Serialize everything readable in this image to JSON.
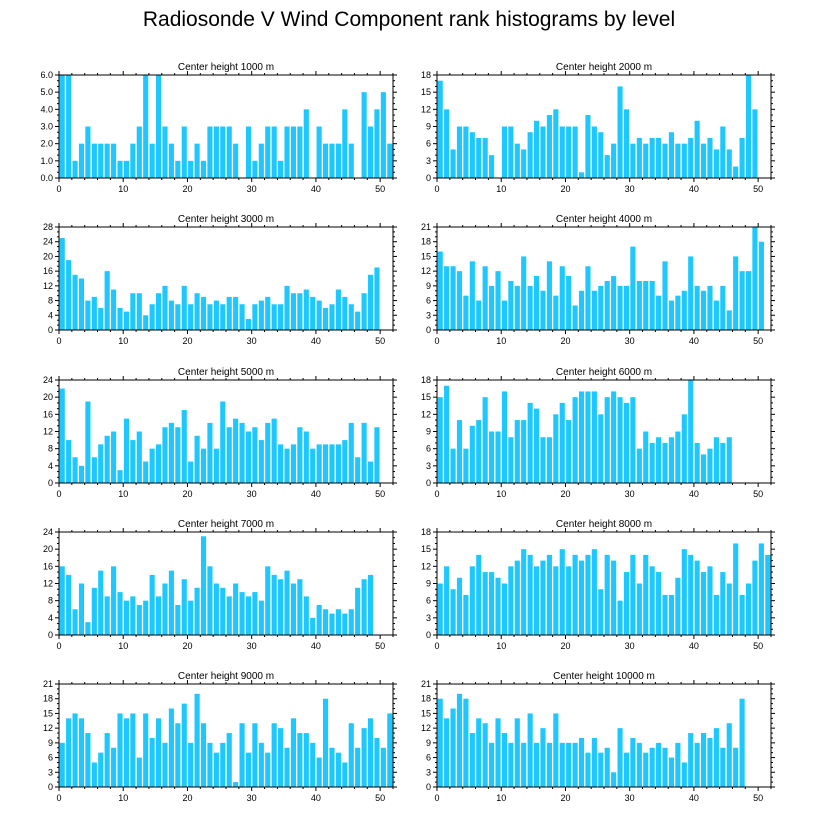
{
  "title": "Radiosonde V Wind Component rank histograms by level",
  "colors": {
    "bar": "#1ec8ff",
    "axis": "#000000",
    "background": "#ffffff"
  },
  "chart_data": [
    {
      "type": "bar",
      "title": "Center height 1000 m",
      "xlabel": "",
      "ylabel": "",
      "xlim": [
        0,
        52
      ],
      "ylim": [
        0,
        6
      ],
      "yticks": [
        0,
        1,
        2,
        3,
        4,
        5,
        6
      ],
      "ytick_labels": [
        "0.0",
        "1.0",
        "2.0",
        "3.0",
        "4.0",
        "5.0",
        "6.0"
      ],
      "xticks": [
        0,
        10,
        20,
        30,
        40,
        50
      ],
      "xtick_labels": [
        "0",
        "10",
        "20",
        "30",
        "40",
        "50"
      ],
      "categories": [
        0,
        1,
        2,
        3,
        4,
        5,
        6,
        7,
        8,
        9,
        10,
        11,
        12,
        13,
        14,
        15,
        16,
        17,
        18,
        19,
        20,
        21,
        22,
        23,
        24,
        25,
        26,
        27,
        28,
        29,
        30,
        31,
        32,
        33,
        34,
        35,
        36,
        37,
        38,
        39,
        40,
        41,
        42,
        43,
        44,
        45,
        46,
        47,
        48,
        49,
        50,
        51
      ],
      "values": [
        6,
        6,
        1,
        2,
        3,
        2,
        2,
        2,
        2,
        1,
        1,
        2,
        3,
        6,
        2,
        6,
        3,
        2,
        1,
        3,
        1,
        2,
        1,
        3,
        3,
        3,
        3,
        2,
        0,
        3,
        1,
        2,
        3,
        3,
        1,
        3,
        3,
        3,
        4,
        0,
        3,
        2,
        2,
        2,
        4,
        2,
        0,
        5,
        3,
        4,
        5,
        2
      ]
    },
    {
      "type": "bar",
      "title": "Center height 2000 m",
      "xlabel": "",
      "ylabel": "",
      "xlim": [
        0,
        52
      ],
      "ylim": [
        0,
        18
      ],
      "yticks": [
        0,
        3,
        6,
        9,
        12,
        15,
        18
      ],
      "ytick_labels": [
        "0",
        "3",
        "6",
        "9",
        "12",
        "15",
        "18"
      ],
      "xticks": [
        0,
        10,
        20,
        30,
        40,
        50
      ],
      "xtick_labels": [
        "0",
        "10",
        "20",
        "30",
        "40",
        "50"
      ],
      "categories": [
        0,
        1,
        2,
        3,
        4,
        5,
        6,
        7,
        8,
        9,
        10,
        11,
        12,
        13,
        14,
        15,
        16,
        17,
        18,
        19,
        20,
        21,
        22,
        23,
        24,
        25,
        26,
        27,
        28,
        29,
        30,
        31,
        32,
        33,
        34,
        35,
        36,
        37,
        38,
        39,
        40,
        41,
        42,
        43,
        44,
        45,
        46,
        47,
        48,
        49,
        50,
        51
      ],
      "values": [
        17,
        12,
        5,
        9,
        9,
        8,
        7,
        7,
        4,
        0,
        9,
        9,
        6,
        5,
        8,
        10,
        9,
        11,
        12,
        9,
        9,
        9,
        1,
        11,
        9,
        8,
        4,
        6,
        16,
        12,
        6,
        7,
        6,
        7,
        7,
        6,
        8,
        6,
        6,
        7,
        10,
        6,
        7,
        5,
        9,
        5,
        2,
        7,
        18,
        12,
        0,
        0
      ]
    },
    {
      "type": "bar",
      "title": "Center height 3000 m",
      "xlabel": "",
      "ylabel": "",
      "xlim": [
        0,
        52
      ],
      "ylim": [
        0,
        28
      ],
      "yticks": [
        0,
        4,
        8,
        12,
        16,
        20,
        24,
        28
      ],
      "ytick_labels": [
        "0",
        "4",
        "8",
        "12",
        "16",
        "20",
        "24",
        "28"
      ],
      "xticks": [
        0,
        10,
        20,
        30,
        40,
        50
      ],
      "xtick_labels": [
        "0",
        "10",
        "20",
        "30",
        "40",
        "50"
      ],
      "categories": [
        0,
        1,
        2,
        3,
        4,
        5,
        6,
        7,
        8,
        9,
        10,
        11,
        12,
        13,
        14,
        15,
        16,
        17,
        18,
        19,
        20,
        21,
        22,
        23,
        24,
        25,
        26,
        27,
        28,
        29,
        30,
        31,
        32,
        33,
        34,
        35,
        36,
        37,
        38,
        39,
        40,
        41,
        42,
        43,
        44,
        45,
        46,
        47,
        48,
        49,
        50,
        51
      ],
      "values": [
        25,
        19,
        15,
        14,
        8,
        9,
        6,
        16,
        11,
        6,
        5,
        10,
        10,
        4,
        7,
        10,
        12,
        8,
        7,
        12,
        7,
        10,
        9,
        7,
        8,
        7,
        9,
        9,
        7,
        3,
        7,
        8,
        9,
        7,
        7,
        12,
        10,
        10,
        11,
        9,
        8,
        6,
        7,
        11,
        9,
        7,
        5,
        10,
        15,
        17,
        0,
        0
      ]
    },
    {
      "type": "bar",
      "title": "Center height 4000 m",
      "xlabel": "",
      "ylabel": "",
      "xlim": [
        0,
        52
      ],
      "ylim": [
        0,
        21
      ],
      "yticks": [
        0,
        3,
        6,
        9,
        12,
        15,
        18,
        21
      ],
      "ytick_labels": [
        "0",
        "3",
        "6",
        "9",
        "12",
        "15",
        "18",
        "21"
      ],
      "xticks": [
        0,
        10,
        20,
        30,
        40,
        50
      ],
      "xtick_labels": [
        "0",
        "10",
        "20",
        "30",
        "40",
        "50"
      ],
      "categories": [
        0,
        1,
        2,
        3,
        4,
        5,
        6,
        7,
        8,
        9,
        10,
        11,
        12,
        13,
        14,
        15,
        16,
        17,
        18,
        19,
        20,
        21,
        22,
        23,
        24,
        25,
        26,
        27,
        28,
        29,
        30,
        31,
        32,
        33,
        34,
        35,
        36,
        37,
        38,
        39,
        40,
        41,
        42,
        43,
        44,
        45,
        46,
        47,
        48,
        49,
        50,
        51
      ],
      "values": [
        16,
        13,
        13,
        12,
        7,
        14,
        6,
        13,
        9,
        12,
        6,
        10,
        9,
        15,
        9,
        11,
        8,
        14,
        7,
        13,
        11,
        5,
        8,
        13,
        8,
        9,
        10,
        11,
        9,
        9,
        17,
        10,
        10,
        10,
        7,
        14,
        6,
        7,
        8,
        15,
        9,
        8,
        9,
        6,
        9,
        4,
        15,
        12,
        12,
        21,
        18,
        0
      ]
    },
    {
      "type": "bar",
      "title": "Center height 5000 m",
      "xlabel": "",
      "ylabel": "",
      "xlim": [
        0,
        52
      ],
      "ylim": [
        0,
        24
      ],
      "yticks": [
        0,
        4,
        8,
        12,
        16,
        20,
        24
      ],
      "ytick_labels": [
        "0",
        "4",
        "8",
        "12",
        "16",
        "20",
        "24"
      ],
      "xticks": [
        0,
        10,
        20,
        30,
        40,
        50
      ],
      "xtick_labels": [
        "0",
        "10",
        "20",
        "30",
        "40",
        "50"
      ],
      "categories": [
        0,
        1,
        2,
        3,
        4,
        5,
        6,
        7,
        8,
        9,
        10,
        11,
        12,
        13,
        14,
        15,
        16,
        17,
        18,
        19,
        20,
        21,
        22,
        23,
        24,
        25,
        26,
        27,
        28,
        29,
        30,
        31,
        32,
        33,
        34,
        35,
        36,
        37,
        38,
        39,
        40,
        41,
        42,
        43,
        44,
        45,
        46,
        47,
        48,
        49,
        50,
        51
      ],
      "values": [
        22,
        10,
        6,
        4,
        19,
        6,
        9,
        11,
        12,
        3,
        15,
        10,
        12,
        5,
        8,
        9,
        13,
        14,
        13,
        17,
        5,
        11,
        8,
        14,
        8,
        19,
        13,
        15,
        14,
        12,
        13,
        10,
        14,
        15,
        9,
        8,
        9,
        13,
        12,
        8,
        9,
        9,
        9,
        9,
        10,
        14,
        6,
        14,
        5,
        13,
        0,
        0
      ]
    },
    {
      "type": "bar",
      "title": "Center height 6000 m",
      "xlabel": "",
      "ylabel": "",
      "xlim": [
        0,
        52
      ],
      "ylim": [
        0,
        18
      ],
      "yticks": [
        0,
        3,
        6,
        9,
        12,
        15,
        18
      ],
      "ytick_labels": [
        "0",
        "3",
        "6",
        "9",
        "12",
        "15",
        "18"
      ],
      "xticks": [
        0,
        10,
        20,
        30,
        40,
        50
      ],
      "xtick_labels": [
        "0",
        "10",
        "20",
        "30",
        "40",
        "50"
      ],
      "categories": [
        0,
        1,
        2,
        3,
        4,
        5,
        6,
        7,
        8,
        9,
        10,
        11,
        12,
        13,
        14,
        15,
        16,
        17,
        18,
        19,
        20,
        21,
        22,
        23,
        24,
        25,
        26,
        27,
        28,
        29,
        30,
        31,
        32,
        33,
        34,
        35,
        36,
        37,
        38,
        39,
        40,
        41,
        42,
        43,
        44,
        45,
        46,
        47,
        48,
        49,
        50,
        51
      ],
      "values": [
        15,
        17,
        6,
        11,
        6,
        10,
        11,
        15,
        9,
        9,
        16,
        8,
        11,
        11,
        14,
        13,
        8,
        8,
        12,
        14,
        11,
        15,
        16,
        16,
        16,
        12,
        15,
        16,
        15,
        14,
        15,
        6,
        9,
        7,
        8,
        7,
        8,
        9,
        12,
        18,
        7,
        5,
        6,
        8,
        7,
        8,
        0,
        0,
        0,
        0,
        0,
        0
      ]
    },
    {
      "type": "bar",
      "title": "Center height 7000 m",
      "xlabel": "",
      "ylabel": "",
      "xlim": [
        0,
        52
      ],
      "ylim": [
        0,
        24
      ],
      "yticks": [
        0,
        4,
        8,
        12,
        16,
        20,
        24
      ],
      "ytick_labels": [
        "0",
        "4",
        "8",
        "12",
        "16",
        "20",
        "24"
      ],
      "xticks": [
        0,
        10,
        20,
        30,
        40,
        50
      ],
      "xtick_labels": [
        "0",
        "10",
        "20",
        "30",
        "40",
        "50"
      ],
      "categories": [
        0,
        1,
        2,
        3,
        4,
        5,
        6,
        7,
        8,
        9,
        10,
        11,
        12,
        13,
        14,
        15,
        16,
        17,
        18,
        19,
        20,
        21,
        22,
        23,
        24,
        25,
        26,
        27,
        28,
        29,
        30,
        31,
        32,
        33,
        34,
        35,
        36,
        37,
        38,
        39,
        40,
        41,
        42,
        43,
        44,
        45,
        46,
        47,
        48,
        49,
        50,
        51
      ],
      "values": [
        16,
        14,
        6,
        12,
        3,
        11,
        15,
        9,
        16,
        10,
        8,
        9,
        7,
        8,
        14,
        9,
        12,
        15,
        7,
        13,
        8,
        11,
        23,
        16,
        12,
        11,
        9,
        12,
        10,
        9,
        10,
        8,
        16,
        14,
        13,
        15,
        12,
        13,
        9,
        4,
        7,
        6,
        5,
        6,
        5,
        6,
        11,
        13,
        14,
        0,
        0,
        0
      ]
    },
    {
      "type": "bar",
      "title": "Center height 8000 m",
      "xlabel": "",
      "ylabel": "",
      "xlim": [
        0,
        52
      ],
      "ylim": [
        0,
        18
      ],
      "yticks": [
        0,
        3,
        6,
        9,
        12,
        15,
        18
      ],
      "ytick_labels": [
        "0",
        "3",
        "6",
        "9",
        "12",
        "15",
        "18"
      ],
      "xticks": [
        0,
        10,
        20,
        30,
        40,
        50
      ],
      "xtick_labels": [
        "0",
        "10",
        "20",
        "30",
        "40",
        "50"
      ],
      "categories": [
        0,
        1,
        2,
        3,
        4,
        5,
        6,
        7,
        8,
        9,
        10,
        11,
        12,
        13,
        14,
        15,
        16,
        17,
        18,
        19,
        20,
        21,
        22,
        23,
        24,
        25,
        26,
        27,
        28,
        29,
        30,
        31,
        32,
        33,
        34,
        35,
        36,
        37,
        38,
        39,
        40,
        41,
        42,
        43,
        44,
        45,
        46,
        47,
        48,
        49,
        50,
        51
      ],
      "values": [
        9,
        12,
        8,
        10,
        7,
        12,
        14,
        11,
        11,
        10,
        9,
        12,
        13,
        15,
        14,
        12,
        13,
        14,
        12,
        15,
        12,
        14,
        13,
        14,
        15,
        8,
        14,
        13,
        6,
        11,
        14,
        9,
        14,
        12,
        11,
        7,
        7,
        10,
        15,
        14,
        13,
        11,
        12,
        7,
        11,
        9,
        16,
        7,
        9,
        13,
        16,
        14
      ]
    },
    {
      "type": "bar",
      "title": "Center height 9000 m",
      "xlabel": "",
      "ylabel": "",
      "xlim": [
        0,
        52
      ],
      "ylim": [
        0,
        21
      ],
      "yticks": [
        0,
        3,
        6,
        9,
        12,
        15,
        18,
        21
      ],
      "ytick_labels": [
        "0",
        "3",
        "6",
        "9",
        "12",
        "15",
        "18",
        "21"
      ],
      "xticks": [
        0,
        10,
        20,
        30,
        40,
        50
      ],
      "xtick_labels": [
        "0",
        "10",
        "20",
        "30",
        "40",
        "50"
      ],
      "categories": [
        0,
        1,
        2,
        3,
        4,
        5,
        6,
        7,
        8,
        9,
        10,
        11,
        12,
        13,
        14,
        15,
        16,
        17,
        18,
        19,
        20,
        21,
        22,
        23,
        24,
        25,
        26,
        27,
        28,
        29,
        30,
        31,
        32,
        33,
        34,
        35,
        36,
        37,
        38,
        39,
        40,
        41,
        42,
        43,
        44,
        45,
        46,
        47,
        48,
        49,
        50,
        51
      ],
      "values": [
        9,
        14,
        15,
        14,
        11,
        5,
        7,
        11,
        8,
        15,
        14,
        15,
        6,
        15,
        10,
        14,
        9,
        16,
        13,
        17,
        9,
        19,
        13,
        9,
        7,
        9,
        11,
        1,
        13,
        7,
        13,
        9,
        7,
        13,
        12,
        8,
        14,
        11,
        11,
        9,
        6,
        18,
        8,
        7,
        5,
        13,
        8,
        12,
        14,
        10,
        8,
        15
      ]
    },
    {
      "type": "bar",
      "title": "Center height 10000 m",
      "xlabel": "",
      "ylabel": "",
      "xlim": [
        0,
        52
      ],
      "ylim": [
        0,
        21
      ],
      "yticks": [
        0,
        3,
        6,
        9,
        12,
        15,
        18,
        21
      ],
      "ytick_labels": [
        "0",
        "3",
        "6",
        "9",
        "12",
        "15",
        "18",
        "21"
      ],
      "xticks": [
        0,
        10,
        20,
        30,
        40,
        50
      ],
      "xtick_labels": [
        "0",
        "10",
        "20",
        "30",
        "40",
        "50"
      ],
      "categories": [
        0,
        1,
        2,
        3,
        4,
        5,
        6,
        7,
        8,
        9,
        10,
        11,
        12,
        13,
        14,
        15,
        16,
        17,
        18,
        19,
        20,
        21,
        22,
        23,
        24,
        25,
        26,
        27,
        28,
        29,
        30,
        31,
        32,
        33,
        34,
        35,
        36,
        37,
        38,
        39,
        40,
        41,
        42,
        43,
        44,
        45,
        46,
        47,
        48,
        49,
        50,
        51
      ],
      "values": [
        18,
        14,
        16,
        19,
        18,
        11,
        14,
        13,
        9,
        14,
        11,
        9,
        14,
        9,
        15,
        9,
        12,
        9,
        15,
        9,
        9,
        9,
        10,
        7,
        10,
        7,
        8,
        3,
        12,
        7,
        10,
        9,
        7,
        8,
        9,
        8,
        6,
        9,
        5,
        11,
        9,
        11,
        10,
        12,
        8,
        13,
        8,
        18,
        0,
        0,
        0,
        0
      ]
    }
  ]
}
